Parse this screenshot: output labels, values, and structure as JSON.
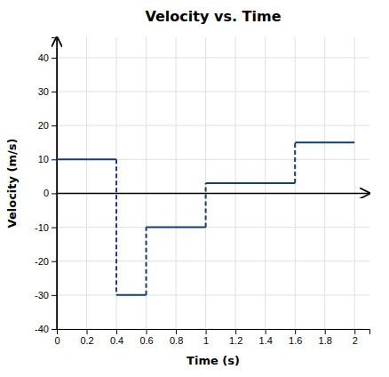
{
  "chart_data": {
    "type": "line",
    "title": "Velocity vs. Time",
    "xlabel": "Time (s)",
    "ylabel": "Velocity (m/s)",
    "xlim": [
      0,
      2.1
    ],
    "ylim": [
      -40,
      46
    ],
    "xticks": [
      0,
      0.2,
      0.4,
      0.6,
      0.8,
      1,
      1.2,
      1.4,
      1.6,
      1.8,
      2
    ],
    "yticks": [
      -40,
      -30,
      -20,
      -10,
      0,
      10,
      20,
      30,
      40
    ],
    "grid": true,
    "series": [
      {
        "x": [
          0,
          0.4
        ],
        "values": [
          10,
          10
        ],
        "color": "#1a3d6e",
        "line_style": "solid"
      },
      {
        "x": [
          0.4,
          0.6
        ],
        "values": [
          -30,
          -30
        ],
        "color": "#1a3d6e",
        "line_style": "solid"
      },
      {
        "x": [
          0.6,
          1.0
        ],
        "values": [
          -10,
          -10
        ],
        "color": "#1a3d6e",
        "line_style": "solid"
      },
      {
        "x": [
          1.0,
          1.6
        ],
        "values": [
          3,
          3
        ],
        "color": "#1a3d6e",
        "line_style": "solid"
      },
      {
        "x": [
          1.6,
          2.0
        ],
        "values": [
          15,
          15
        ],
        "color": "#1a3d6e",
        "line_style": "solid"
      },
      {
        "x": [
          0.4,
          0.4
        ],
        "values": [
          10,
          -30
        ],
        "color": "#1a3d6e",
        "line_style": "dashed"
      },
      {
        "x": [
          0.6,
          0.6
        ],
        "values": [
          -30,
          -10
        ],
        "color": "#1a3d6e",
        "line_style": "dashed"
      },
      {
        "x": [
          1.0,
          1.0
        ],
        "values": [
          -10,
          3
        ],
        "color": "#1a3d6e",
        "line_style": "dashed"
      },
      {
        "x": [
          1.6,
          1.6
        ],
        "values": [
          3,
          15
        ],
        "color": "#1a3d6e",
        "line_style": "dashed"
      }
    ]
  }
}
